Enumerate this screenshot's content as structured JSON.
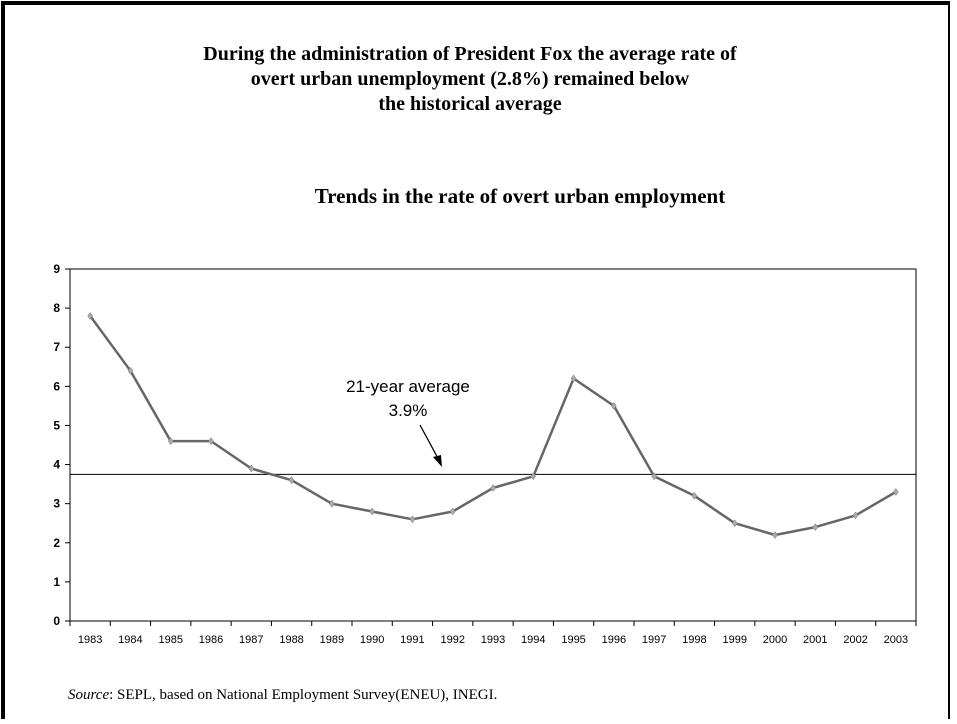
{
  "headline": {
    "line1": "During the administration of President Fox the average rate of",
    "line2": "overt urban unemployment (2.8%) remained below",
    "line3": "the historical average"
  },
  "source": {
    "label": "Source",
    "text": ": SEPL, based on National Employment Survey(ENEU), INEGI."
  },
  "chart_data": {
    "type": "line",
    "title": "Trends in the rate of overt urban employment",
    "xlabel": "",
    "ylabel": "",
    "ylim": [
      0,
      9
    ],
    "yticks": [
      0,
      1,
      2,
      3,
      4,
      5,
      6,
      7,
      8,
      9
    ],
    "x": [
      "1983",
      "1984",
      "1985",
      "1986",
      "1987",
      "1988",
      "1989",
      "1990",
      "1991",
      "1992",
      "1993",
      "1994",
      "1995",
      "1996",
      "1997",
      "1998",
      "1999",
      "2000",
      "2001",
      "2002",
      "2003"
    ],
    "series": [
      {
        "values": [
          7.8,
          6.4,
          4.6,
          4.6,
          3.9,
          3.6,
          3.0,
          2.8,
          2.6,
          2.8,
          3.4,
          3.7,
          6.2,
          5.5,
          3.7,
          3.2,
          2.5,
          2.2,
          2.4,
          2.7,
          3.3
        ],
        "color": "#666666"
      }
    ],
    "reference_line": {
      "value": 3.75,
      "color": "#000000"
    },
    "annotation": {
      "line1": "21-year average",
      "line2": "3.9%"
    },
    "grid": false,
    "legend": "none"
  }
}
